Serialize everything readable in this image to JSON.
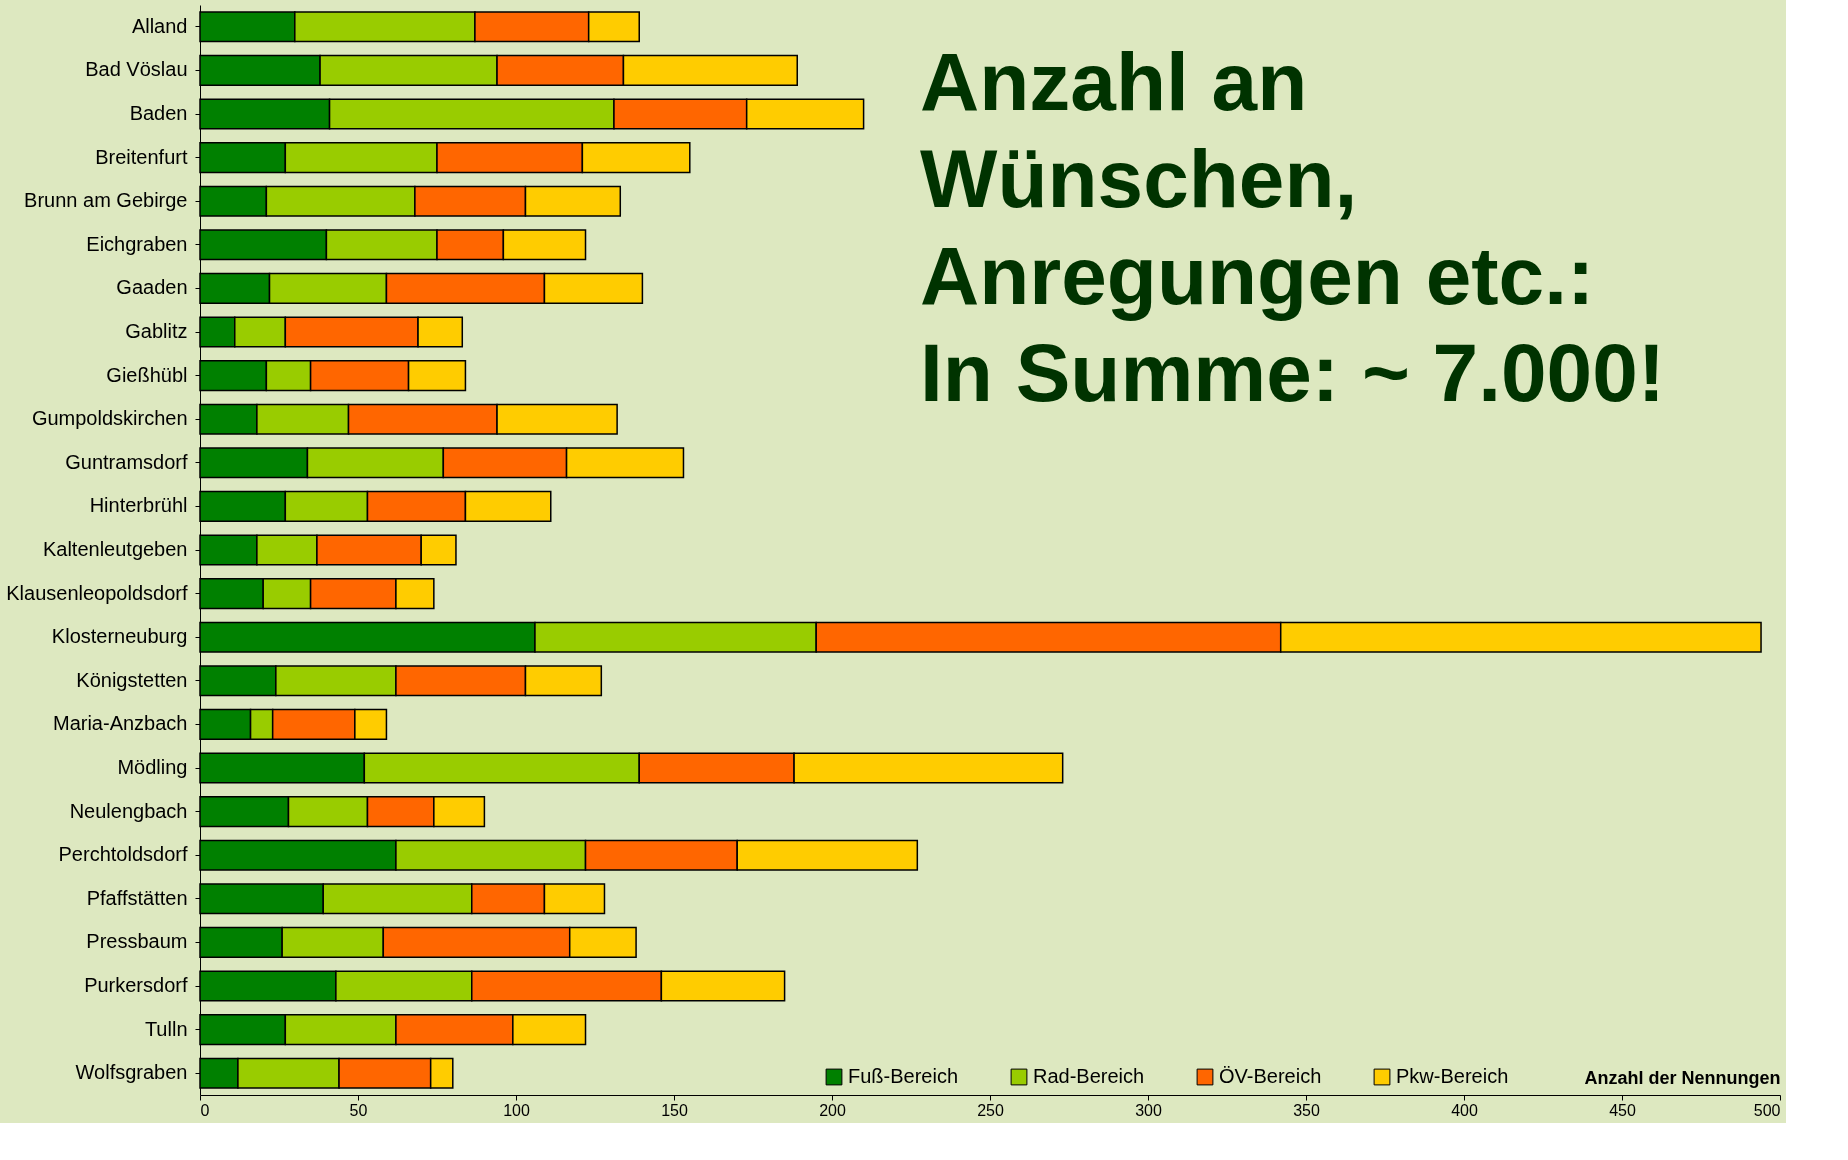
{
  "chart_data": {
    "type": "bar",
    "orientation": "horizontal",
    "stacked": true,
    "categories": [
      "Alland",
      "Bad Vöslau",
      "Baden",
      "Breitenfurt",
      "Brunn am Gebirge",
      "Eichgraben",
      "Gaaden",
      "Gablitz",
      "Gießhübl",
      "Gumpoldskirchen",
      "Guntramsdorf",
      "Hinterbrühl",
      "Kaltenleutgeben",
      "Klausenleopoldsdorf",
      "Klosterneuburg",
      "Königstetten",
      "Maria-Anzbach",
      "Mödling",
      "Neulengbach",
      "Perchtoldsdorf",
      "Pfaffstätten",
      "Pressbaum",
      "Purkersdorf",
      "Tulln",
      "Wolfsgraben"
    ],
    "series": [
      {
        "name": "Fuß-Bereich",
        "color": "#008000",
        "values": [
          30,
          38,
          41,
          27,
          21,
          40,
          22,
          11,
          21,
          18,
          34,
          27,
          18,
          20,
          106,
          24,
          16,
          52,
          28,
          62,
          39,
          26,
          43,
          27,
          12
        ]
      },
      {
        "name": "Rad-Bereich",
        "color": "#99cc00",
        "values": [
          57,
          56,
          90,
          48,
          47,
          35,
          37,
          16,
          14,
          29,
          43,
          26,
          19,
          15,
          89,
          38,
          7,
          87,
          25,
          60,
          47,
          32,
          43,
          35,
          32
        ]
      },
      {
        "name": "ÖV-Bereich",
        "color": "#ff6600",
        "values": [
          36,
          40,
          42,
          46,
          35,
          21,
          50,
          42,
          31,
          47,
          39,
          31,
          33,
          27,
          147,
          41,
          26,
          49,
          21,
          48,
          23,
          59,
          60,
          37,
          29
        ]
      },
      {
        "name": "Pkw-Bereich",
        "color": "#ffcc00",
        "values": [
          16,
          55,
          37,
          34,
          30,
          26,
          31,
          14,
          18,
          38,
          37,
          27,
          11,
          12,
          152,
          24,
          10,
          85,
          16,
          57,
          19,
          21,
          39,
          23,
          7
        ]
      }
    ],
    "xlim": [
      0,
      500
    ],
    "xticks": [
      0,
      50,
      100,
      150,
      200,
      250,
      300,
      350,
      400,
      450,
      500
    ],
    "xlabel": "Anzahl der Nennungen",
    "annotations": [
      "Anzahl an\nWünschen,\nAnregungen etc.:\nIn Summe: ~ 7.000!"
    ],
    "legend": "bottom right",
    "grid": false
  }
}
